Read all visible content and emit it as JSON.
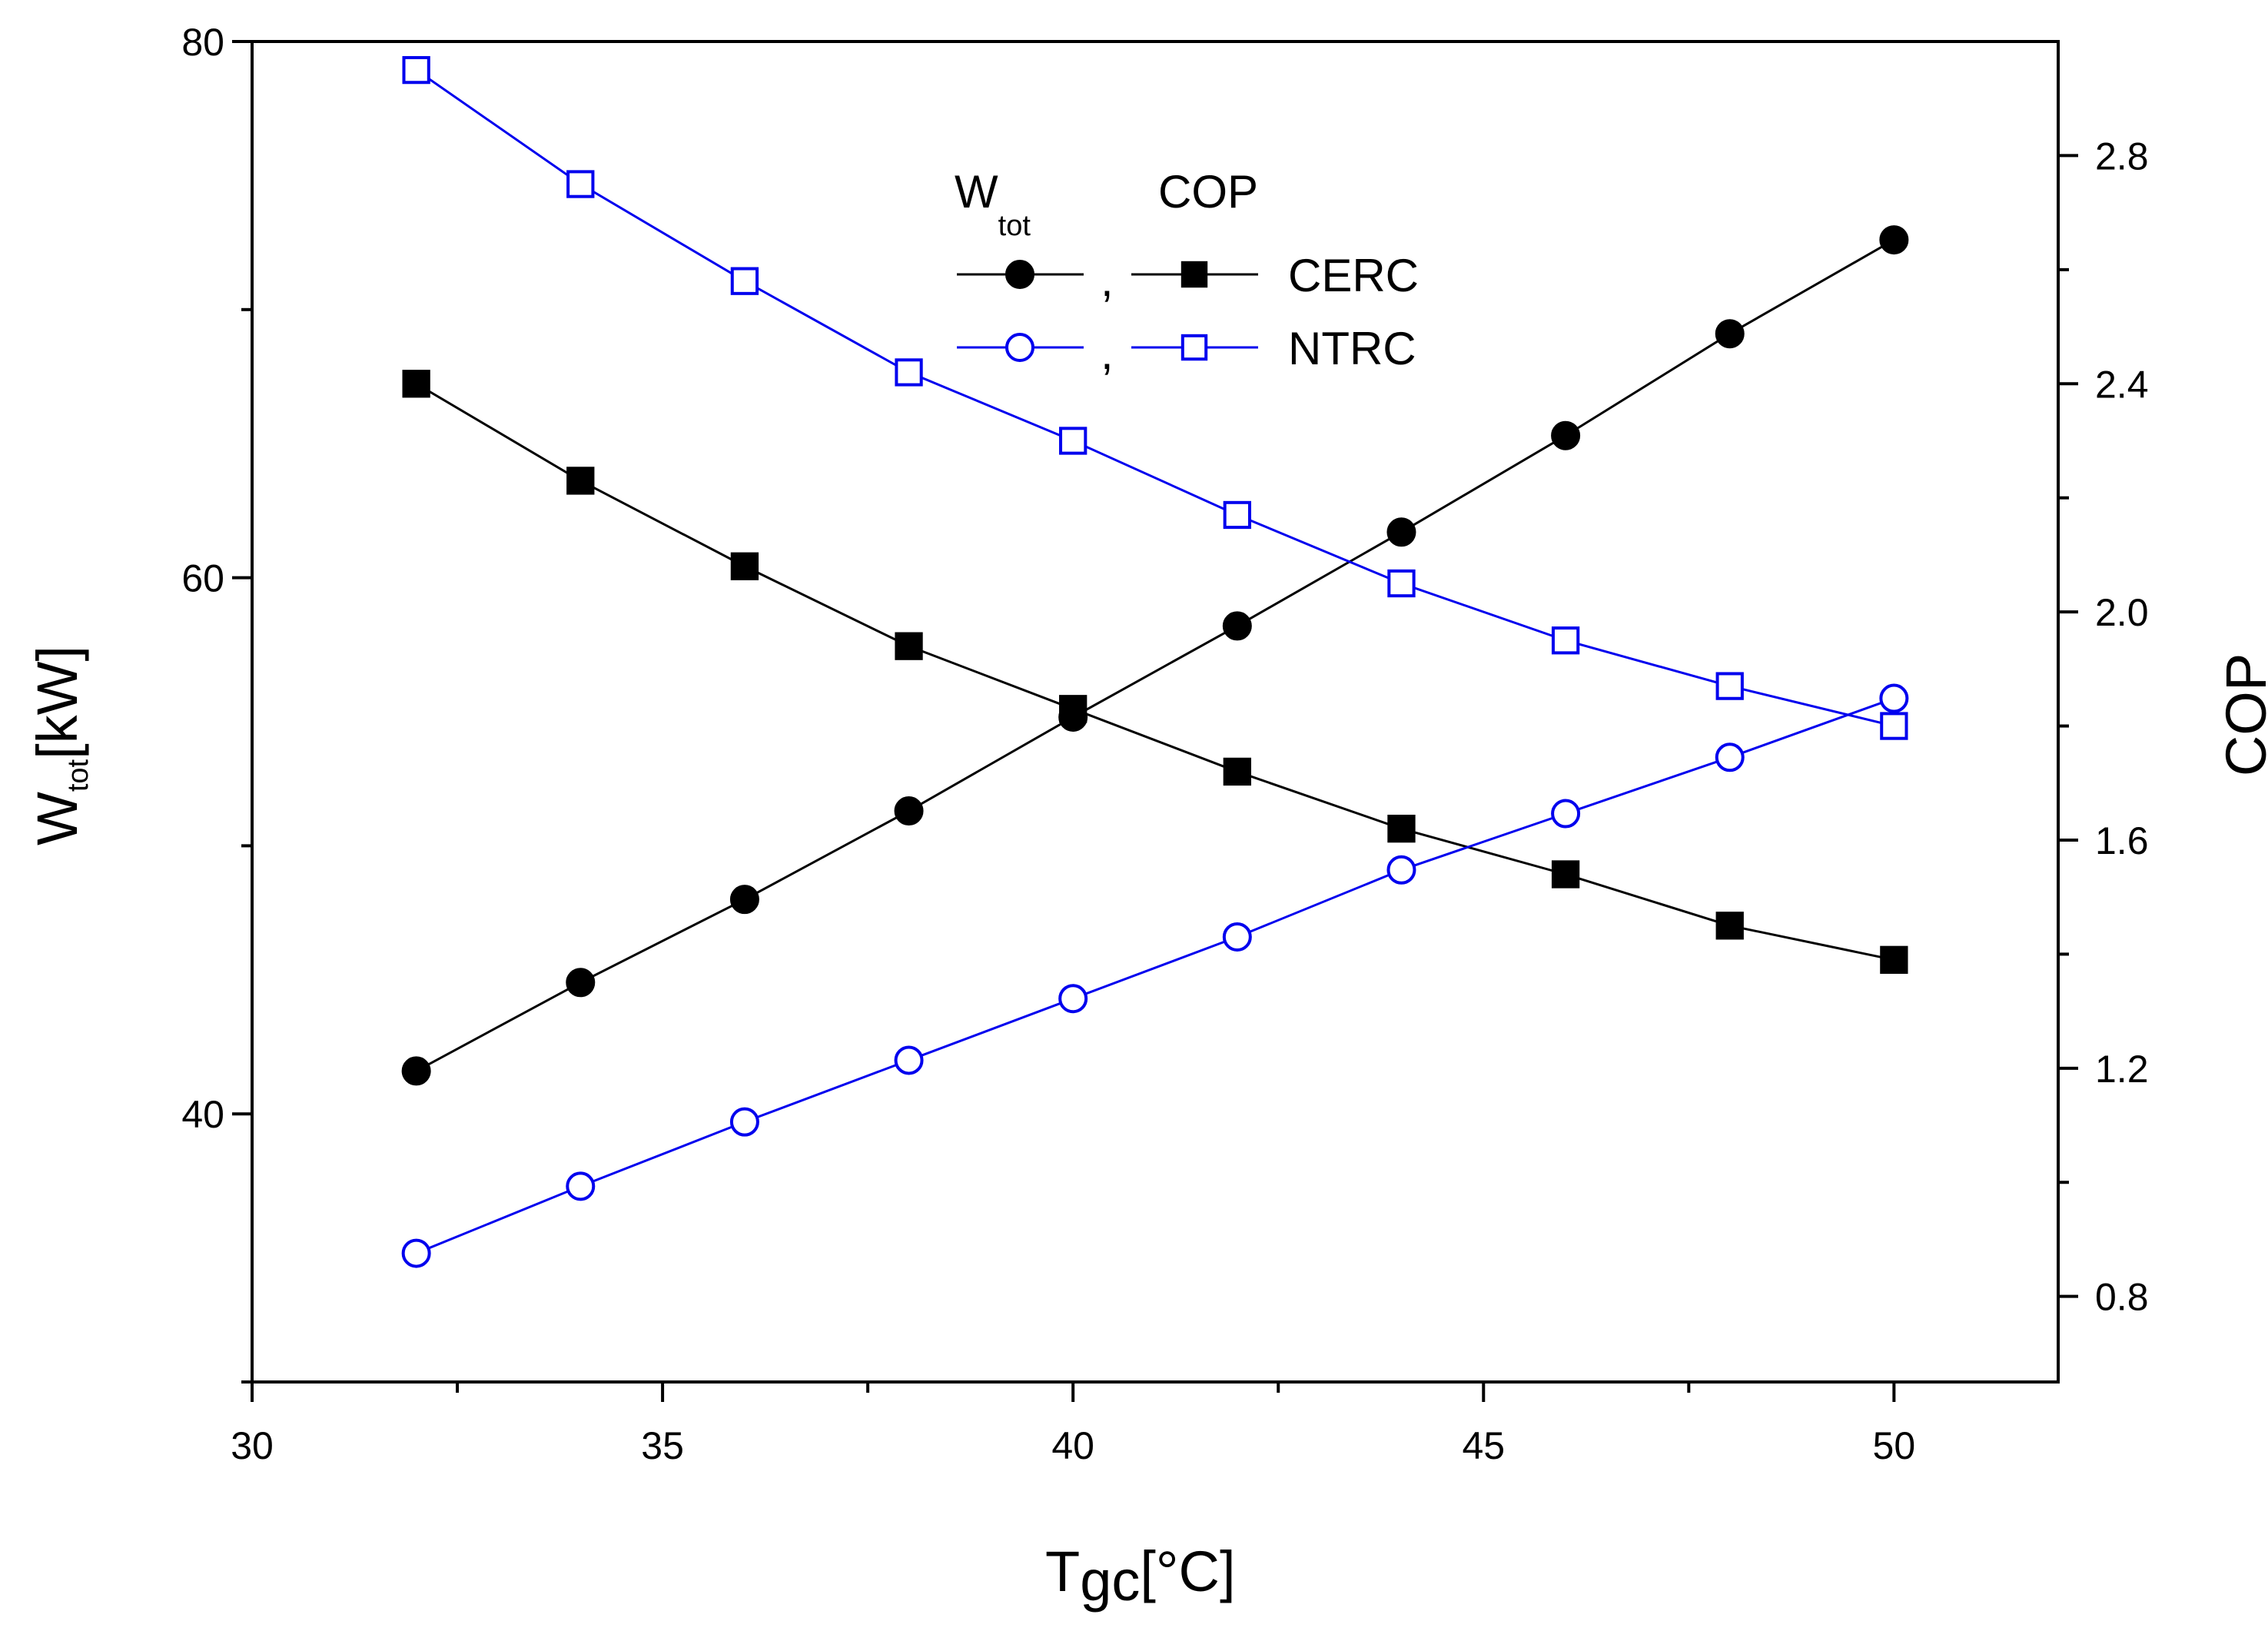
{
  "chart_data": {
    "type": "line",
    "x": [
      32,
      34,
      36,
      38,
      40,
      42,
      44,
      46,
      48,
      50
    ],
    "x_axis": {
      "label_main": "T",
      "label_sub": "gc",
      "label_unit": "[°C]",
      "range": [
        30,
        52
      ],
      "major_ticks": [
        30,
        35,
        40,
        45,
        50
      ],
      "tick_labels": [
        "30",
        "35",
        "40",
        "45",
        "50"
      ],
      "minor_ticks": [
        32.5,
        37.5,
        42.5,
        47.5
      ]
    },
    "y_left": {
      "label_main": "W",
      "label_sub": "tot",
      "label_unit": "[kW]",
      "range": [
        30,
        80
      ],
      "major_ticks": [
        40,
        60,
        80
      ],
      "tick_labels": [
        "40",
        "60",
        "80"
      ],
      "minor_ticks": [
        30,
        50,
        70
      ]
    },
    "y_right": {
      "label": "COP",
      "range": [
        0.65,
        3.0
      ],
      "major_ticks": [
        0.8,
        1.2,
        1.6,
        2.0,
        2.4,
        2.8
      ],
      "tick_labels": [
        "0.8",
        "1.2",
        "1.6",
        "2.0",
        "2.4",
        "2.8"
      ],
      "minor_ticks": [
        1.0,
        1.4,
        1.8,
        2.2,
        2.6
      ]
    },
    "series": [
      {
        "name": "CERC W_tot",
        "axis": "left",
        "marker": "circle",
        "filled": true,
        "color": "#000000",
        "values": [
          41.6,
          44.9,
          48.0,
          51.3,
          54.8,
          58.2,
          61.7,
          65.3,
          69.1,
          72.6
        ]
      },
      {
        "name": "CERC COP",
        "axis": "right",
        "marker": "square",
        "filled": true,
        "color": "#000000",
        "values": [
          2.4,
          2.23,
          2.08,
          1.94,
          1.83,
          1.72,
          1.62,
          1.54,
          1.45,
          1.39
        ]
      },
      {
        "name": "NTRC W_tot",
        "axis": "left",
        "marker": "circle",
        "filled": false,
        "color": "#0000ee",
        "values": [
          34.8,
          37.3,
          39.7,
          42.0,
          44.3,
          46.6,
          49.1,
          51.2,
          53.3,
          55.5
        ]
      },
      {
        "name": "NTRC COP",
        "axis": "right",
        "marker": "square",
        "filled": false,
        "color": "#0000ee",
        "values": [
          2.95,
          2.75,
          2.58,
          2.42,
          2.3,
          2.17,
          2.05,
          1.95,
          1.87,
          1.8
        ]
      }
    ],
    "legend": {
      "position": "top-center",
      "header_w_main": "W",
      "header_w_sub": "tot",
      "header_cop": "COP",
      "separator": ",",
      "rows": [
        {
          "label": "CERC",
          "color": "#000000",
          "filled": true
        },
        {
          "label": "NTRC",
          "color": "#0000ee",
          "filled": false
        }
      ]
    }
  }
}
